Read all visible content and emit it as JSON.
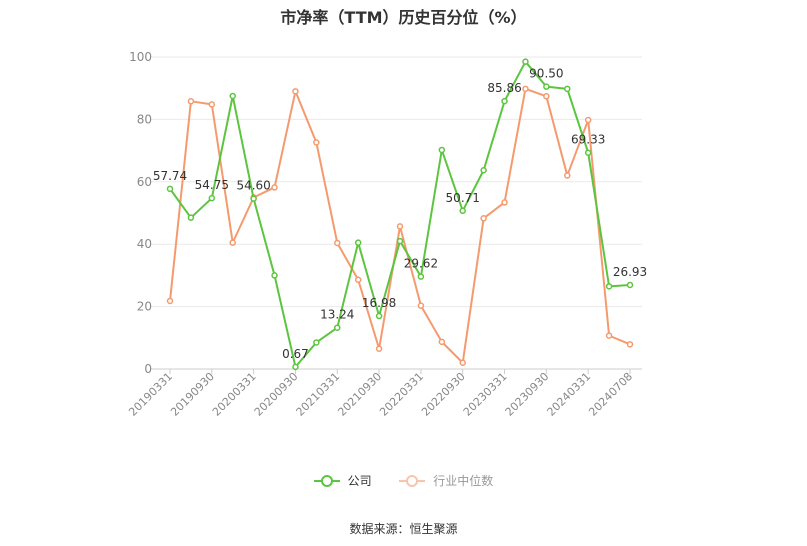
{
  "chart_data": {
    "type": "line",
    "title": "市净率（TTM）历史百分位（%）",
    "xlabel": "",
    "ylabel": "",
    "ylim": [
      0,
      100
    ],
    "yticks": [
      0,
      20,
      40,
      60,
      80,
      100
    ],
    "grid": true,
    "legend_position": "bottom",
    "x": [
      "20190331",
      "20190630",
      "20190930",
      "20191231",
      "20200331",
      "20200630",
      "20200930",
      "20201231",
      "20210331",
      "20210630",
      "20210930",
      "20211231",
      "20220331",
      "20220630",
      "20220930",
      "20221231",
      "20230331",
      "20230630",
      "20230930",
      "20231231",
      "20240331",
      "20240630",
      "20240708"
    ],
    "x_tick_labels": [
      "20190331",
      "20190930",
      "20200331",
      "20200930",
      "20210331",
      "20210930",
      "20220331",
      "20220930",
      "20230331",
      "20230930",
      "20240331",
      "20240708"
    ],
    "series": [
      {
        "name": "公司",
        "color": "#5cc53f",
        "values": [
          57.74,
          48.5,
          54.75,
          87.5,
          54.6,
          30.0,
          0.67,
          8.5,
          13.24,
          40.5,
          16.98,
          41.0,
          29.62,
          70.2,
          50.71,
          63.7,
          85.86,
          98.5,
          90.5,
          89.8,
          69.33,
          26.5,
          26.93
        ],
        "labels": {
          "0": "57.74",
          "2": "54.75",
          "4": "54.60",
          "6": "0.67",
          "8": "13.24",
          "10": "16.98",
          "12": "29.62",
          "14": "50.71",
          "16": "85.86",
          "18": "90.50",
          "20": "69.33",
          "22": "26.93"
        }
      },
      {
        "name": "行业中位数",
        "color": "#f59a6e",
        "values": [
          21.8,
          85.8,
          84.8,
          40.5,
          55.0,
          58.2,
          89.0,
          72.6,
          40.4,
          28.6,
          6.5,
          45.7,
          20.3,
          8.7,
          2.0,
          48.3,
          53.4,
          89.8,
          87.4,
          62.0,
          79.8,
          10.7,
          7.9
        ]
      }
    ]
  },
  "source_text": "数据来源：恒生聚源"
}
